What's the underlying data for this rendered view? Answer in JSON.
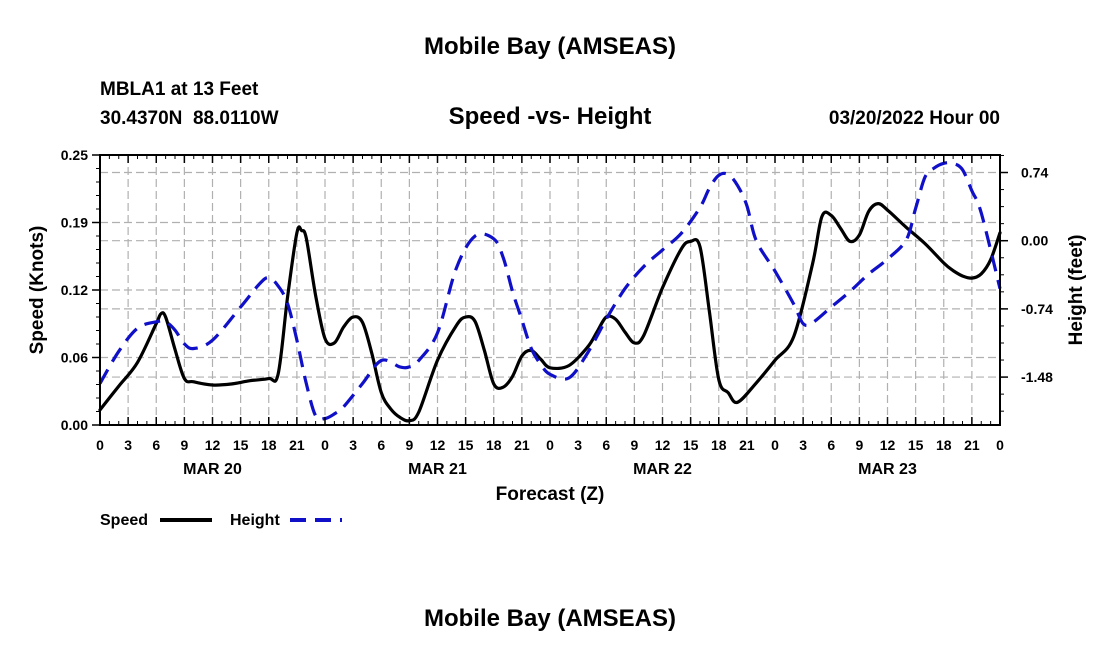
{
  "page_title": "Mobile Bay (AMSEAS)",
  "footer_title": "Mobile Bay (AMSEAS)",
  "station": {
    "name_line": "MBLA1 at 13 Feet",
    "coords_line": "30.4370N  88.0110W"
  },
  "date_line": "03/20/2022 Hour 00",
  "colors": {
    "speed": "#000000",
    "height": "#1010c8",
    "grid": "#b0b0b0"
  },
  "chart_data": {
    "type": "line",
    "title": "Speed -vs- Height",
    "xlabel": "Forecast (Z)",
    "ylabel_left": "Speed (Knots)",
    "ylabel_right": "Height (feet)",
    "x_range_hours": [
      0,
      96
    ],
    "y_left_range": [
      0,
      0.25
    ],
    "y_right_range": [
      -2.0,
      0.93
    ],
    "x_ticks": [
      {
        "h": 0,
        "label": "0"
      },
      {
        "h": 3,
        "label": "3"
      },
      {
        "h": 6,
        "label": "6"
      },
      {
        "h": 9,
        "label": "9"
      },
      {
        "h": 12,
        "label": "12"
      },
      {
        "h": 15,
        "label": "15"
      },
      {
        "h": 18,
        "label": "18"
      },
      {
        "h": 21,
        "label": "21"
      },
      {
        "h": 24,
        "label": "0"
      },
      {
        "h": 27,
        "label": "3"
      },
      {
        "h": 30,
        "label": "6"
      },
      {
        "h": 33,
        "label": "9"
      },
      {
        "h": 36,
        "label": "12"
      },
      {
        "h": 39,
        "label": "15"
      },
      {
        "h": 42,
        "label": "18"
      },
      {
        "h": 45,
        "label": "21"
      },
      {
        "h": 48,
        "label": "0"
      },
      {
        "h": 51,
        "label": "3"
      },
      {
        "h": 54,
        "label": "6"
      },
      {
        "h": 57,
        "label": "9"
      },
      {
        "h": 60,
        "label": "12"
      },
      {
        "h": 63,
        "label": "15"
      },
      {
        "h": 66,
        "label": "18"
      },
      {
        "h": 69,
        "label": "21"
      },
      {
        "h": 72,
        "label": "0"
      },
      {
        "h": 75,
        "label": "3"
      },
      {
        "h": 78,
        "label": "6"
      },
      {
        "h": 81,
        "label": "9"
      },
      {
        "h": 84,
        "label": "12"
      },
      {
        "h": 87,
        "label": "15"
      },
      {
        "h": 90,
        "label": "18"
      },
      {
        "h": 93,
        "label": "21"
      },
      {
        "h": 96,
        "label": "0"
      }
    ],
    "day_labels": [
      {
        "h": 12,
        "label": "MAR 20"
      },
      {
        "h": 36,
        "label": "MAR 21"
      },
      {
        "h": 60,
        "label": "MAR 22"
      },
      {
        "h": 84,
        "label": "MAR 23"
      }
    ],
    "y_left_ticks": [
      {
        "v": 0.0,
        "label": "0.00"
      },
      {
        "v": 0.0625,
        "label": "0.06"
      },
      {
        "v": 0.125,
        "label": "0.12"
      },
      {
        "v": 0.1875,
        "label": "0.19"
      },
      {
        "v": 0.25,
        "label": "0.25"
      }
    ],
    "y_right_ticks": [
      {
        "v": 0.74,
        "label": "0.74"
      },
      {
        "v": 0.0,
        "label": "0.00"
      },
      {
        "v": -0.74,
        "label": "-0.74"
      },
      {
        "v": -1.48,
        "label": "-1.48"
      }
    ],
    "series": [
      {
        "name": "Speed",
        "axis": "left",
        "style": "solid",
        "x": [
          0,
          2,
          4,
          6,
          6.5,
          7,
          8,
          9,
          10,
          12,
          14,
          16,
          18,
          19,
          20,
          21,
          21.5,
          22,
          23,
          24,
          25,
          26,
          27,
          28,
          29,
          30,
          31,
          32,
          33,
          34,
          36,
          38,
          39,
          40,
          41,
          42,
          43,
          44,
          45,
          46,
          47,
          48,
          50,
          52,
          53,
          54,
          55,
          56,
          57,
          58,
          60,
          62,
          63,
          64,
          65,
          66,
          67,
          68,
          70,
          72,
          74,
          76,
          77,
          78,
          79,
          80,
          81,
          82,
          83,
          84,
          86,
          88,
          90,
          91,
          92,
          93,
          94,
          95,
          96
        ],
        "values": [
          0.014,
          0.036,
          0.058,
          0.094,
          0.103,
          0.1,
          0.07,
          0.043,
          0.04,
          0.037,
          0.038,
          0.041,
          0.043,
          0.047,
          0.118,
          0.178,
          0.18,
          0.173,
          0.12,
          0.08,
          0.076,
          0.091,
          0.1,
          0.095,
          0.066,
          0.03,
          0.015,
          0.007,
          0.004,
          0.012,
          0.06,
          0.092,
          0.1,
          0.096,
          0.069,
          0.038,
          0.035,
          0.045,
          0.064,
          0.069,
          0.061,
          0.053,
          0.055,
          0.072,
          0.086,
          0.1,
          0.098,
          0.086,
          0.076,
          0.083,
          0.127,
          0.163,
          0.17,
          0.165,
          0.105,
          0.042,
          0.03,
          0.021,
          0.039,
          0.06,
          0.082,
          0.149,
          0.193,
          0.194,
          0.182,
          0.17,
          0.176,
          0.198,
          0.205,
          0.199,
          0.183,
          0.168,
          0.15,
          0.143,
          0.138,
          0.136,
          0.14,
          0.153,
          0.178
        ]
      },
      {
        "name": "Height",
        "axis": "right",
        "style": "dashed",
        "x": [
          0,
          2,
          4,
          6,
          7,
          8,
          9,
          10,
          12,
          15,
          17,
          18,
          19,
          20,
          21,
          22,
          23,
          24,
          25,
          26,
          28,
          30,
          32,
          33,
          34,
          36,
          38,
          40,
          42,
          43,
          44,
          45,
          46,
          47,
          48,
          50,
          52,
          54,
          56,
          58,
          60,
          62,
          64,
          65,
          66,
          67,
          68,
          69,
          70,
          72,
          74,
          75,
          76,
          78,
          80,
          82,
          84,
          86,
          87,
          88,
          89,
          90,
          91,
          92,
          93,
          94,
          96
        ],
        "values": [
          -1.55,
          -1.2,
          -0.95,
          -0.88,
          -0.88,
          -0.97,
          -1.12,
          -1.17,
          -1.08,
          -0.72,
          -0.47,
          -0.4,
          -0.49,
          -0.68,
          -1.08,
          -1.55,
          -1.9,
          -1.93,
          -1.88,
          -1.8,
          -1.55,
          -1.3,
          -1.37,
          -1.37,
          -1.3,
          -1.0,
          -0.3,
          0.05,
          0.02,
          -0.18,
          -0.55,
          -0.86,
          -1.17,
          -1.34,
          -1.45,
          -1.49,
          -1.22,
          -0.85,
          -0.52,
          -0.28,
          -0.1,
          0.08,
          0.36,
          0.57,
          0.71,
          0.72,
          0.6,
          0.38,
          0.0,
          -0.33,
          -0.69,
          -0.9,
          -0.89,
          -0.72,
          -0.55,
          -0.36,
          -0.2,
          0.01,
          0.35,
          0.69,
          0.79,
          0.84,
          0.84,
          0.77,
          0.54,
          0.3,
          -0.52
        ]
      }
    ],
    "legend": {
      "position": "bottom-left",
      "entries": [
        {
          "label": "Speed",
          "series": "Speed"
        },
        {
          "label": "Height",
          "series": "Height"
        }
      ]
    }
  }
}
